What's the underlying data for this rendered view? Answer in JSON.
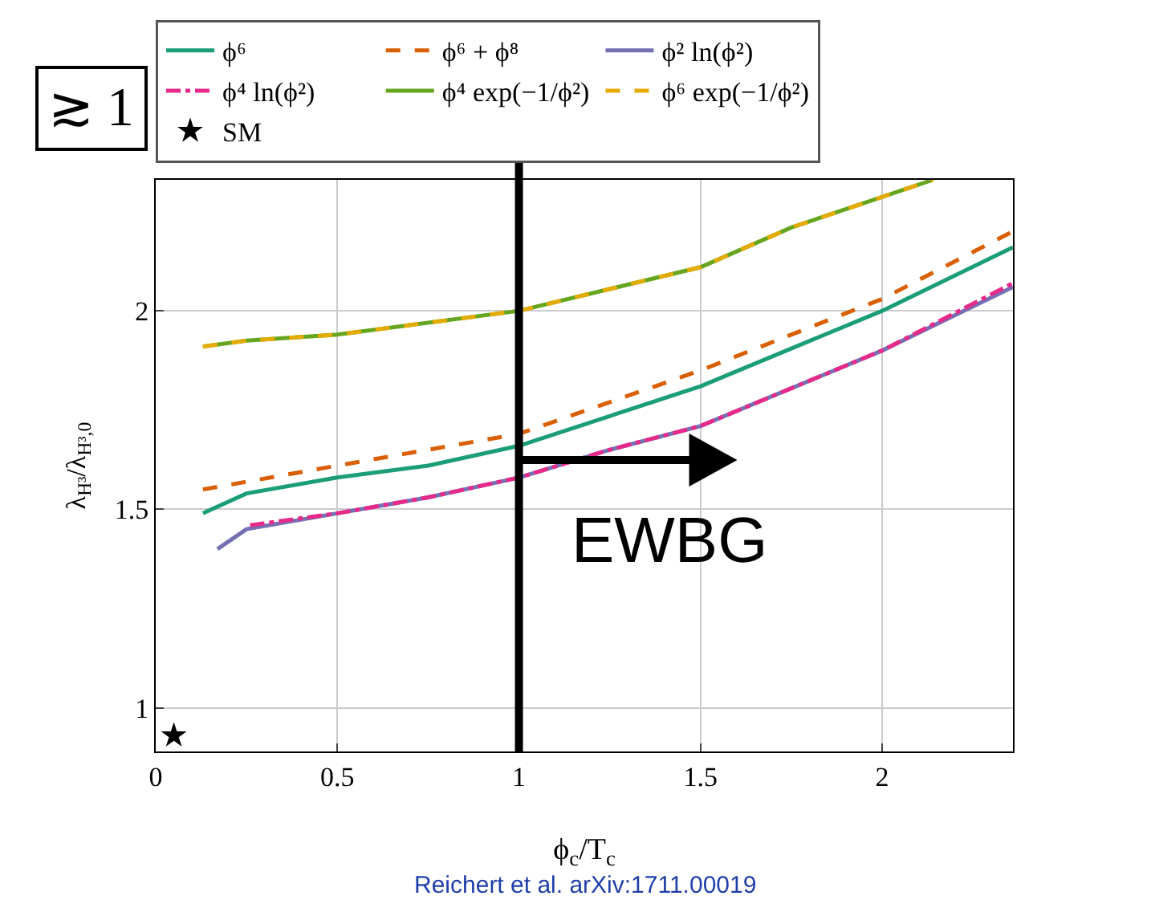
{
  "chart_data": {
    "type": "line",
    "xlabel": "ϕ$_{c}$/T$_{c}$",
    "ylabel": "λ$_{H³}$/λ$_{H³,0}$",
    "xlim": [
      0,
      2.36
    ],
    "ylim": [
      0.89,
      2.33
    ],
    "xticks": [
      0,
      0.5,
      1,
      1.5,
      2
    ],
    "yticks": [
      1,
      1.5,
      2
    ],
    "grid": true,
    "legend": "top",
    "ref_lines": [
      {
        "axis": "x",
        "value": 1,
        "color": "#000000",
        "line_style": "solid"
      }
    ],
    "annotations": [
      "EWBG",
      "≳ 1",
      "Reichert et al. arXiv:1711.00019"
    ],
    "series": [
      {
        "name": "ϕ⁶",
        "color": "#1b9e77",
        "line_style": "solid",
        "marker": "none",
        "x": [
          0.13,
          0.25,
          0.5,
          0.75,
          1,
          1.5,
          2,
          2.36
        ],
        "values": [
          1.49,
          1.54,
          1.58,
          1.61,
          1.66,
          1.81,
          2.0,
          2.16
        ]
      },
      {
        "name": "ϕ⁶ + ϕ⁸",
        "color": "#d95f02",
        "line_style": "dashed",
        "marker": "none",
        "x": [
          0.13,
          0.5,
          1,
          1.5,
          2,
          2.36
        ],
        "values": [
          1.55,
          1.61,
          1.69,
          1.85,
          2.03,
          2.2
        ]
      },
      {
        "name": "ϕ² ln(ϕ²)",
        "color": "#7570b3",
        "line_style": "solid",
        "marker": "none",
        "x": [
          0.17,
          0.25,
          0.5,
          0.75,
          1,
          1.25,
          1.5,
          2,
          2.36
        ],
        "values": [
          1.4,
          1.45,
          1.49,
          1.53,
          1.58,
          1.65,
          1.71,
          1.9,
          2.06
        ]
      },
      {
        "name": "ϕ⁴ ln(ϕ²)",
        "color": "#e7298a",
        "line_style": "dashdot",
        "marker": "none",
        "x": [
          0.26,
          0.5,
          0.75,
          1,
          1.25,
          1.5,
          2,
          2.36
        ],
        "values": [
          1.46,
          1.49,
          1.53,
          1.58,
          1.65,
          1.71,
          1.9,
          2.07
        ]
      },
      {
        "name": "ϕ⁴ exp(−1/ϕ²)",
        "color": "#66a61e",
        "line_style": "solid",
        "marker": "none",
        "x": [
          0.13,
          0.25,
          0.5,
          1,
          1.5,
          1.75,
          2.14
        ],
        "values": [
          1.91,
          1.925,
          1.94,
          2.0,
          2.11,
          2.21,
          2.33
        ]
      },
      {
        "name": "ϕ⁶ exp(−1/ϕ²)",
        "color": "#e6ab02",
        "line_style": "dashed",
        "marker": "none",
        "x": [
          0.13,
          0.25,
          0.5,
          1,
          1.5,
          1.75,
          2.14
        ],
        "values": [
          1.91,
          1.925,
          1.94,
          2.0,
          2.11,
          2.21,
          2.33
        ]
      },
      {
        "name": "SM",
        "type": "scatter",
        "color": "#000000",
        "marker": "star",
        "x": [
          0.05
        ],
        "values": [
          0.93
        ]
      }
    ]
  }
}
